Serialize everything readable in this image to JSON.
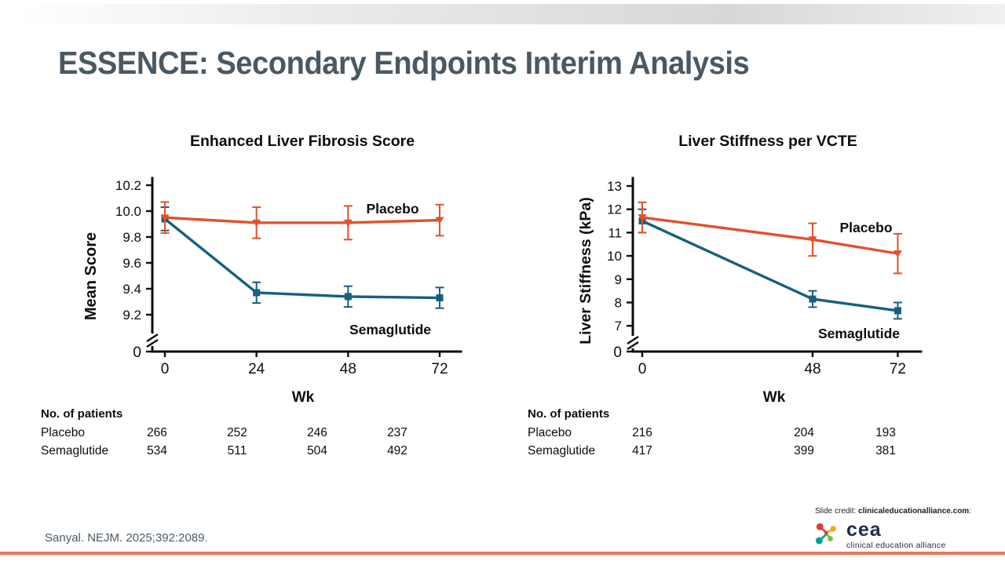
{
  "slide": {
    "title": "ESSENCE: Secondary Endpoints Interim Analysis",
    "citation": "Sanyal. NEJM. 2025;392:2089.",
    "credit": {
      "prefix": "Slide credit:",
      "site": "clinicaleducationalliance.com",
      "suffix": ":"
    },
    "logo": {
      "name": "cea",
      "tagline": "clinical education alliance"
    }
  },
  "colors": {
    "placebo": "#E0522B",
    "semaglutide": "#16607D",
    "title_text": "#4A5862",
    "bottom_rule": "#E8795C",
    "axis": "#0d0d0d"
  },
  "chart_data": [
    {
      "type": "line",
      "title": "Enhanced Liver Fibrosis Score",
      "xlabel": "Wk",
      "ylabel": "Mean Score",
      "x": [
        0,
        24,
        48,
        72
      ],
      "x_tick_labels": [
        "0",
        "24",
        "48",
        "72"
      ],
      "y_ticks": [
        "10.2",
        "10.0",
        "9.8",
        "9.6",
        "9.4",
        "9.2"
      ],
      "y_tick_values": [
        10.2,
        10.0,
        9.8,
        9.6,
        9.4,
        9.2
      ],
      "y_range_shown": [
        9.2,
        10.2
      ],
      "axis_break": true,
      "zero_label": "0",
      "series": [
        {
          "name": "Placebo",
          "marker": "triangle-down",
          "color": "#E0522B",
          "values": [
            9.95,
            9.91,
            9.91,
            9.93
          ],
          "errors": [
            0.12,
            0.12,
            0.13,
            0.12
          ]
        },
        {
          "name": "Semaglutide",
          "marker": "square",
          "color": "#16607D",
          "values": [
            9.94,
            9.37,
            9.34,
            9.33
          ],
          "errors": [
            0.09,
            0.08,
            0.08,
            0.08
          ]
        }
      ],
      "patients": {
        "header": "No. of patients",
        "rows": [
          {
            "label": "Placebo",
            "values": [
              "266",
              "252",
              "246",
              "237"
            ]
          },
          {
            "label": "Semaglutide",
            "values": [
              "534",
              "511",
              "504",
              "492"
            ]
          }
        ]
      }
    },
    {
      "type": "line",
      "title": "Liver Stiffness per VCTE",
      "xlabel": "Wk",
      "ylabel": "Liver Stiffness (kPa)",
      "x": [
        0,
        48,
        72
      ],
      "x_tick_labels": [
        "0",
        "48",
        "72"
      ],
      "y_ticks": [
        "13",
        "12",
        "11",
        "10",
        "9",
        "8",
        "7"
      ],
      "y_tick_values": [
        13,
        12,
        11,
        10,
        9,
        8,
        7
      ],
      "y_range_shown": [
        7,
        13
      ],
      "axis_break": true,
      "zero_label": "0",
      "series": [
        {
          "name": "Placebo",
          "marker": "triangle-down",
          "color": "#E0522B",
          "values": [
            11.65,
            10.7,
            10.1
          ],
          "errors": [
            0.65,
            0.7,
            0.85
          ]
        },
        {
          "name": "Semaglutide",
          "marker": "square",
          "color": "#16607D",
          "values": [
            11.5,
            8.15,
            7.65
          ],
          "errors": [
            0.5,
            0.35,
            0.35
          ]
        }
      ],
      "patients": {
        "header": "No. of patients",
        "rows": [
          {
            "label": "Placebo",
            "values": [
              "216",
              "204",
              "193"
            ]
          },
          {
            "label": "Semaglutide",
            "values": [
              "417",
              "399",
              "381"
            ]
          }
        ]
      }
    }
  ]
}
